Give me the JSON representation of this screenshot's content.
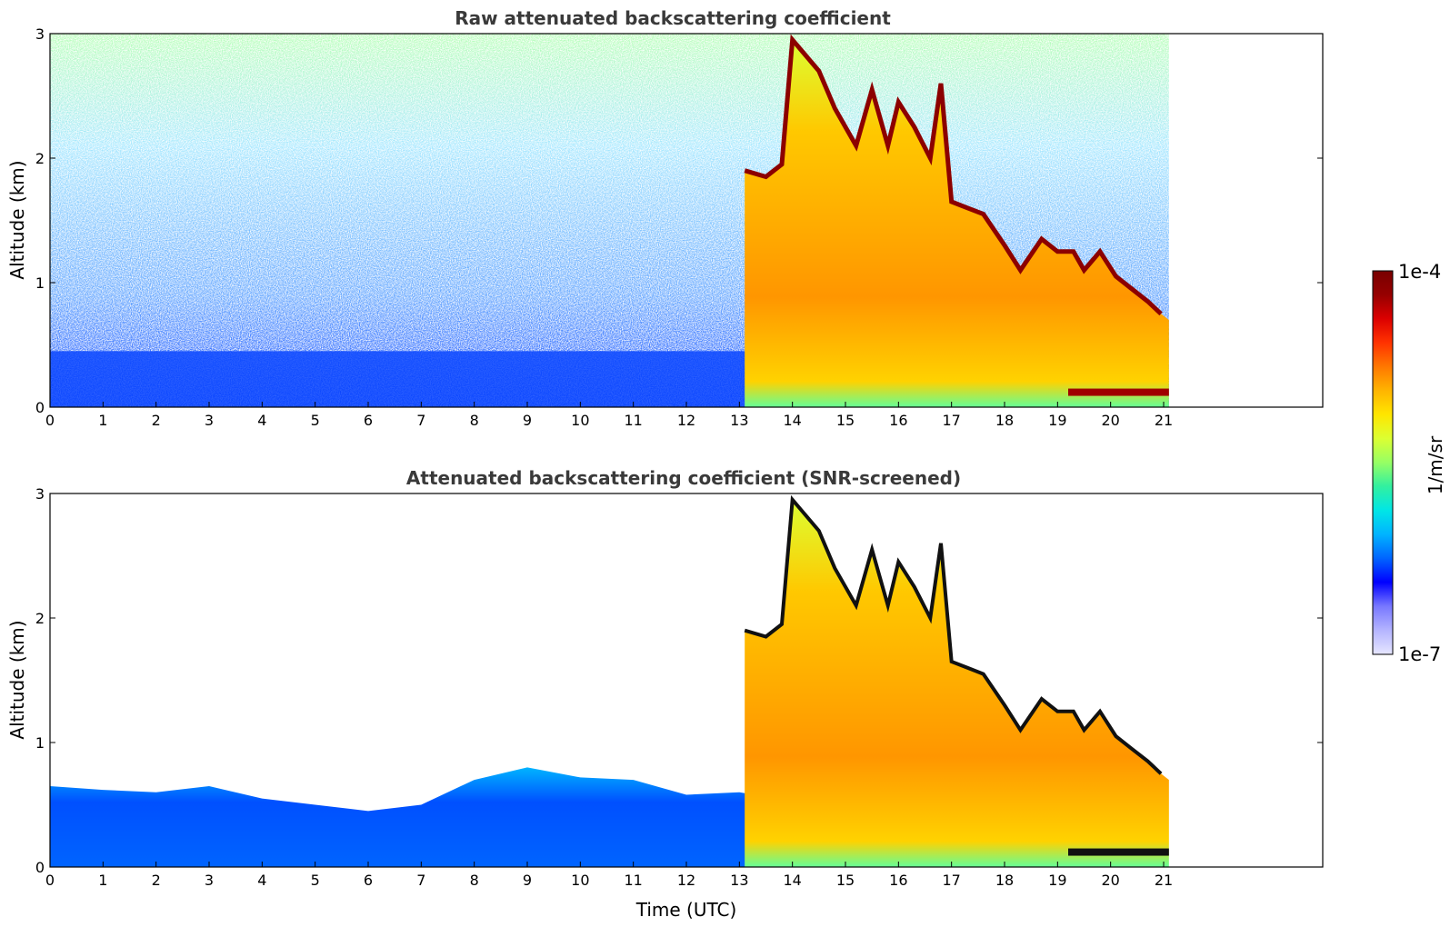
{
  "chart_data": [
    {
      "type": "heatmap",
      "title": "Raw attenuated backscattering coefficient",
      "xlabel": "",
      "ylabel": "Altitude (km)",
      "xlim": [
        0,
        24
      ],
      "ylim": [
        0,
        3
      ],
      "x_ticks": [
        "0",
        "1",
        "2",
        "3",
        "4",
        "5",
        "6",
        "7",
        "8",
        "9",
        "10",
        "11",
        "12",
        "13",
        "14",
        "15",
        "16",
        "17",
        "18",
        "19",
        "20",
        "21"
      ],
      "y_ticks": [
        "0",
        "1",
        "2",
        "3"
      ],
      "data_end_hour": 21.1,
      "cloud_top_km": [
        [
          13.1,
          1.9
        ],
        [
          13.5,
          1.85
        ],
        [
          13.8,
          1.95
        ],
        [
          14.0,
          2.95
        ],
        [
          14.2,
          2.85
        ],
        [
          14.5,
          2.7
        ],
        [
          14.8,
          2.4
        ],
        [
          15.2,
          2.1
        ],
        [
          15.5,
          2.55
        ],
        [
          15.8,
          2.1
        ],
        [
          16.0,
          2.45
        ],
        [
          16.3,
          2.25
        ],
        [
          16.6,
          2.0
        ],
        [
          16.8,
          2.6
        ],
        [
          17.0,
          1.65
        ],
        [
          17.3,
          1.6
        ],
        [
          17.6,
          1.55
        ],
        [
          18.0,
          1.3
        ],
        [
          18.3,
          1.1
        ],
        [
          18.7,
          1.35
        ],
        [
          19.0,
          1.25
        ],
        [
          19.3,
          1.25
        ],
        [
          19.5,
          1.1
        ],
        [
          19.8,
          1.25
        ],
        [
          20.1,
          1.05
        ],
        [
          20.4,
          0.95
        ],
        [
          20.7,
          0.85
        ],
        [
          20.95,
          0.75
        ]
      ],
      "surface_layer_km": {
        "from_hour": 19.2,
        "to_hour": 21.1,
        "altitude": 0.12
      }
    },
    {
      "type": "heatmap",
      "title": "Attenuated backscattering coefficient (SNR-screened)",
      "xlabel": "Time (UTC)",
      "ylabel": "Altitude (km)",
      "xlim": [
        0,
        24
      ],
      "ylim": [
        0,
        3
      ],
      "x_ticks": [
        "0",
        "1",
        "2",
        "3",
        "4",
        "5",
        "6",
        "7",
        "8",
        "9",
        "10",
        "11",
        "12",
        "13",
        "14",
        "15",
        "16",
        "17",
        "18",
        "19",
        "20",
        "21"
      ],
      "y_ticks": [
        "0",
        "1",
        "2",
        "3"
      ],
      "boundary_layer_top_km": [
        [
          0,
          0.65
        ],
        [
          1,
          0.62
        ],
        [
          2,
          0.6
        ],
        [
          3,
          0.65
        ],
        [
          4,
          0.55
        ],
        [
          5,
          0.5
        ],
        [
          6,
          0.45
        ],
        [
          7,
          0.5
        ],
        [
          8,
          0.7
        ],
        [
          9,
          0.8
        ],
        [
          10,
          0.72
        ],
        [
          11,
          0.7
        ],
        [
          12,
          0.58
        ],
        [
          13,
          0.6
        ],
        [
          13.7,
          0.55
        ]
      ]
    }
  ],
  "colorbar": {
    "label": "1/m/sr",
    "max_label": "1e-4",
    "min_label": "1e-7",
    "colors": [
      "#e6e6ff",
      "#b4b4ff",
      "#7878ff",
      "#0000ff",
      "#0064ff",
      "#00b4ff",
      "#00e6e6",
      "#32f0a0",
      "#96ff64",
      "#dcff32",
      "#ffe600",
      "#ffb400",
      "#ff7800",
      "#ff3200",
      "#dc0000",
      "#960000",
      "#780000"
    ]
  }
}
